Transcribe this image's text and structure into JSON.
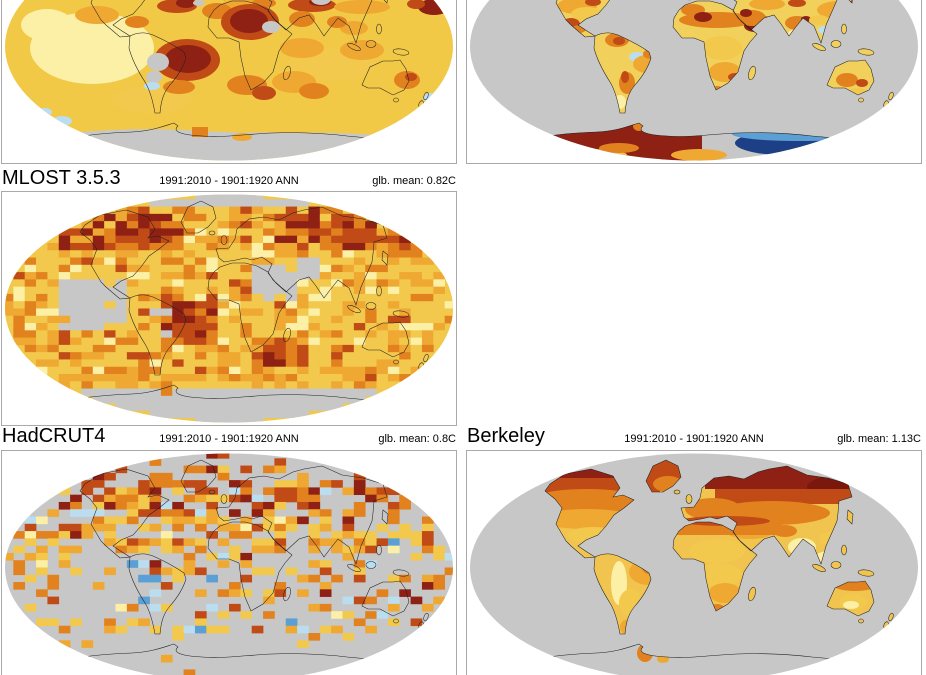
{
  "figure": {
    "panels": {
      "mlost": {
        "name": "MLOST 3.5.3",
        "period": "1991:2010 - 1901:1920 ANN",
        "global_mean": "glb. mean: 0.82C"
      },
      "hadcrut4": {
        "name": "HadCRUT4",
        "period": "1991:2010 - 1901:1920 ANN",
        "global_mean": "glb. mean: 0.8C"
      },
      "berkeley": {
        "name": "Berkeley",
        "period": "1991:2010 - 1901:1920 ANN",
        "global_mean": "glb. mean: 1.13C"
      }
    },
    "colors": {
      "no_data_gray": "#c7c7c7",
      "anomaly_scale": [
        "#1c3f86",
        "#5b9fd4",
        "#badef0",
        "#fcefa6",
        "#f2c94c",
        "#efa832",
        "#e2821f",
        "#c14b16",
        "#8e2113"
      ]
    }
  }
}
